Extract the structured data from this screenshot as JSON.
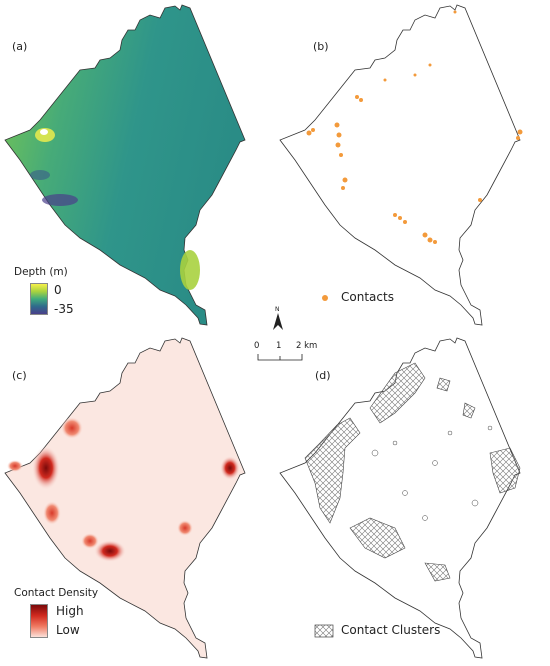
{
  "panels": {
    "a": {
      "label": "(a)",
      "legend_title": "Depth (m)",
      "legend_max": "0",
      "legend_min": "-35",
      "ramp": [
        "#f6f04a",
        "#a8d23f",
        "#3fab7d",
        "#2a8c86",
        "#2f6a8c",
        "#4a3f8a"
      ]
    },
    "b": {
      "label": "(b)",
      "legend_label": "Contacts",
      "point_color": "#f39a3b"
    },
    "c": {
      "label": "(c)",
      "legend_title": "Contact Density",
      "legend_high": "High",
      "legend_low": "Low",
      "ramp": [
        "#7a0a0a",
        "#d12a1f",
        "#f07a62",
        "#fbe1da"
      ]
    },
    "d": {
      "label": "(d)",
      "legend_label": "Contact Clusters"
    }
  },
  "north_arrow": {
    "letter": "N"
  },
  "scale_bar": {
    "ticks": [
      "0",
      "1",
      "2 km"
    ]
  },
  "colors": {
    "outline": "#222222",
    "land_fill_b": "#ffffff",
    "hatch": "#555555"
  }
}
